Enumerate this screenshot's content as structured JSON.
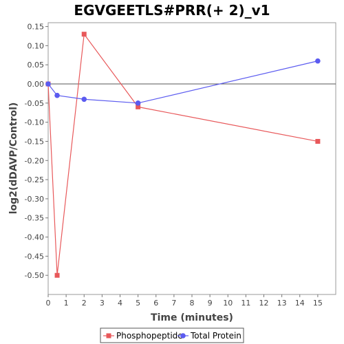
{
  "chart_data": {
    "type": "line",
    "title": "EGVGEETLS#PRR(+ 2)_v1",
    "xlabel": "Time (minutes)",
    "ylabel": "log2(dDAVP/Control)",
    "xlim": [
      0,
      16
    ],
    "ylim": [
      -0.55,
      0.16
    ],
    "x_ticks": [
      0,
      1,
      2,
      3,
      4,
      5,
      6,
      7,
      8,
      9,
      10,
      11,
      12,
      13,
      14,
      15
    ],
    "y_ticks": [
      0.15,
      0.1,
      0.05,
      0.0,
      -0.05,
      -0.1,
      -0.15,
      -0.2,
      -0.25,
      -0.3,
      -0.35,
      -0.4,
      -0.45,
      -0.5
    ],
    "y_tick_labels": [
      "0.15",
      "0.10",
      "0.05",
      "0.00",
      "-0.05",
      "-0.10",
      "-0.15",
      "-0.20",
      "-0.25",
      "-0.30",
      "-0.35",
      "-0.40",
      "-0.45",
      "-0.50"
    ],
    "grid": false,
    "reference_line_y": 0,
    "legend_position": "bottom",
    "series": [
      {
        "name": "Phosphopeptide",
        "color": "#e8585a",
        "marker": "square",
        "x": [
          0,
          0.5,
          2,
          5,
          15
        ],
        "y": [
          0.0,
          -0.5,
          0.13,
          -0.06,
          -0.15
        ]
      },
      {
        "name": "Total Protein",
        "color": "#5b5bf0",
        "marker": "circle",
        "x": [
          0,
          0.5,
          2,
          5,
          15
        ],
        "y": [
          0.0,
          -0.03,
          -0.04,
          -0.05,
          0.06
        ]
      }
    ]
  }
}
